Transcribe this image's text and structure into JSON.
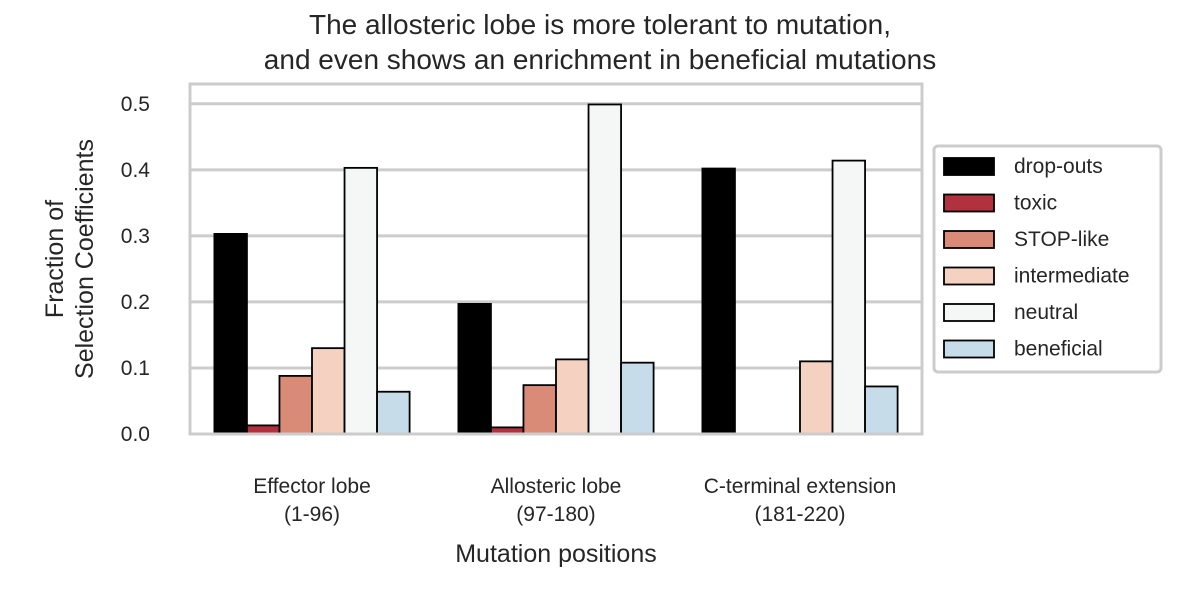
{
  "chart_data": {
    "type": "bar",
    "title": [
      "The allosteric lobe is more tolerant to mutation,",
      "and even shows an enrichment in beneficial mutations"
    ],
    "xlabel": "Mutation positions",
    "ylabel": [
      "Fraction of",
      "Selection Coefficients"
    ],
    "categories": [
      [
        "Effector lobe",
        "(1-96)"
      ],
      [
        "Allosteric lobe",
        "(97-180)"
      ],
      [
        "C-terminal extension",
        "(181-220)"
      ]
    ],
    "ylim": [
      0,
      0.53
    ],
    "yticks": [
      0.0,
      0.1,
      0.2,
      0.3,
      0.4,
      0.5
    ],
    "grid": true,
    "legend_position": "right",
    "series": [
      {
        "name": "drop-outs",
        "color": "#000000",
        "values": [
          0.303,
          0.197,
          0.402
        ]
      },
      {
        "name": "toxic",
        "color": "#b2313f",
        "values": [
          0.013,
          0.01,
          0.0
        ]
      },
      {
        "name": "STOP-like",
        "color": "#d98b78",
        "values": [
          0.088,
          0.074,
          0.0
        ]
      },
      {
        "name": "intermediate",
        "color": "#f5d1c1",
        "values": [
          0.13,
          0.113,
          0.11
        ]
      },
      {
        "name": "neutral",
        "color": "#f4f7f6",
        "values": [
          0.403,
          0.499,
          0.414
        ]
      },
      {
        "name": "beneficial",
        "color": "#c6dde9",
        "values": [
          0.064,
          0.108,
          0.072
        ]
      }
    ]
  }
}
